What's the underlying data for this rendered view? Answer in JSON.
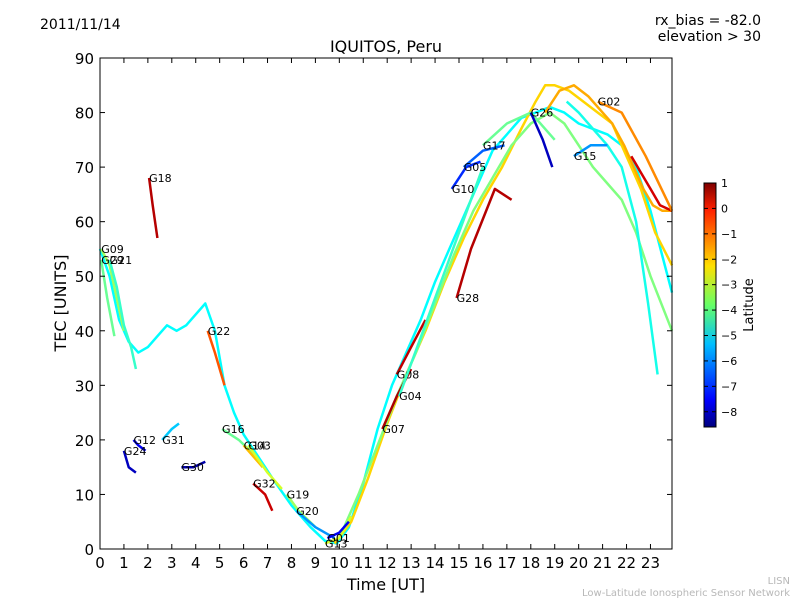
{
  "header": {
    "date": "2011/11/14",
    "rx_bias": "rx_bias = -82.0",
    "elevation": "elevation > 30"
  },
  "footer": {
    "line1": "LISN",
    "line2": "Low-Latitude Ionospheric Sensor Network"
  },
  "chart_data": {
    "type": "scatter",
    "title": "IQUITOS, Peru",
    "xlabel": "Time [UT]",
    "ylabel": "TEC [UNITS]",
    "xlim": [
      0,
      23.9
    ],
    "ylim": [
      0,
      90
    ],
    "xticks": [
      0,
      1,
      2,
      3,
      4,
      5,
      6,
      7,
      8,
      9,
      10,
      11,
      12,
      13,
      14,
      15,
      16,
      17,
      18,
      19,
      20,
      21,
      22,
      23
    ],
    "yticks": [
      0,
      10,
      20,
      30,
      40,
      50,
      60,
      70,
      80,
      90
    ],
    "grid": false,
    "colorbar": {
      "label": "Latitude",
      "range": [
        -8.6,
        1.0
      ],
      "ticks": [
        1,
        0,
        -1,
        -2,
        -3,
        -4,
        -5,
        -6,
        -7,
        -8
      ],
      "colormap": "jet"
    },
    "series": [
      {
        "name": "G18",
        "color_value": 0.5,
        "x": [
          2.05,
          2.2,
          2.4
        ],
        "y": [
          68,
          63,
          57
        ]
      },
      {
        "name": "G09",
        "color_value": -3.5,
        "x": [
          0.05,
          0.4,
          0.8,
          1.0
        ],
        "y": [
          55,
          52,
          44,
          40
        ]
      },
      {
        "name": "G21",
        "color_value": -4.5,
        "x": [
          0.4,
          0.7,
          1.0,
          1.3,
          1.5
        ],
        "y": [
          53,
          48,
          41,
          37,
          33
        ]
      },
      {
        "name": "G29",
        "color_value": -4.0,
        "x": [
          0.05,
          0.3,
          0.6
        ],
        "y": [
          53,
          46,
          39
        ]
      },
      {
        "name": "G22",
        "color_value": -1.0,
        "x": [
          4.5,
          4.8,
          5.2
        ],
        "y": [
          40,
          36,
          30
        ]
      },
      {
        "name": "G12",
        "color_value": -7.5,
        "x": [
          1.4,
          1.6,
          1.9
        ],
        "y": [
          20,
          19,
          18
        ]
      },
      {
        "name": "G24",
        "color_value": -8.0,
        "x": [
          1.0,
          1.2,
          1.5
        ],
        "y": [
          18,
          15,
          14
        ]
      },
      {
        "name": "G31",
        "color_value": -5.5,
        "x": [
          2.6,
          3.0,
          3.3
        ],
        "y": [
          20,
          22,
          23
        ]
      },
      {
        "name": "G30",
        "color_value": -8.2,
        "x": [
          3.4,
          3.9,
          4.4
        ],
        "y": [
          15,
          15,
          16
        ]
      },
      {
        "name": "G16",
        "color_value": -4.0,
        "x": [
          5.1,
          5.8,
          6.5
        ],
        "y": [
          22,
          20,
          17
        ]
      },
      {
        "name": "G14",
        "color_value": -2.0,
        "x": [
          6.0,
          6.4,
          6.8
        ],
        "y": [
          19,
          17,
          15
        ]
      },
      {
        "name": "G03",
        "color_value": -3.0,
        "x": [
          6.2,
          7.0,
          7.6
        ],
        "y": [
          19,
          14,
          11
        ]
      },
      {
        "name": "G32",
        "color_value": 0.3,
        "x": [
          6.4,
          6.9,
          7.2
        ],
        "y": [
          12,
          10,
          7
        ]
      },
      {
        "name": "G19",
        "color_value": -3.5,
        "x": [
          7.8,
          8.3,
          9.0
        ],
        "y": [
          10,
          7,
          4
        ]
      },
      {
        "name": "G20",
        "color_value": -6.0,
        "x": [
          8.2,
          9.0,
          9.8
        ],
        "y": [
          7,
          4,
          2
        ]
      },
      {
        "name": "G13",
        "color_value": -3.0,
        "x": [
          9.4,
          10.0,
          10.5
        ],
        "y": [
          1,
          2,
          6
        ]
      },
      {
        "name": "G01",
        "color_value": -7.5,
        "x": [
          9.5,
          10.0,
          10.4
        ],
        "y": [
          2,
          3,
          5
        ]
      },
      {
        "name": "G07",
        "color_value": 0.6,
        "x": [
          11.8,
          12.4,
          13.0
        ],
        "y": [
          22,
          28,
          33
        ]
      },
      {
        "name": "G08",
        "color_value": 0.4,
        "x": [
          12.4,
          13.0,
          13.6
        ],
        "y": [
          32,
          37,
          42
        ]
      },
      {
        "name": "G04",
        "color_value": -4.5,
        "x": [
          12.5,
          14.0,
          15.0,
          16.0
        ],
        "y": [
          28,
          46,
          58,
          70
        ]
      },
      {
        "name": "G28",
        "color_value": 0.5,
        "x": [
          14.9,
          15.5,
          16.5,
          17.2
        ],
        "y": [
          46,
          55,
          66,
          64
        ]
      },
      {
        "name": "G10",
        "color_value": -7.0,
        "x": [
          14.7,
          15.3,
          15.9
        ],
        "y": [
          66,
          70,
          71
        ]
      },
      {
        "name": "G05",
        "color_value": -6.5,
        "x": [
          15.2,
          16.0,
          16.9
        ],
        "y": [
          70,
          73,
          74
        ]
      },
      {
        "name": "G17",
        "color_value": -4.0,
        "x": [
          16.0,
          17.0,
          18.0,
          19.0
        ],
        "y": [
          74,
          78,
          80,
          75
        ]
      },
      {
        "name": "G26",
        "color_value": -8.0,
        "x": [
          18.0,
          18.5,
          18.9
        ],
        "y": [
          80,
          75,
          70
        ]
      },
      {
        "name": "G15",
        "color_value": -6.0,
        "x": [
          19.8,
          20.5,
          21.2
        ],
        "y": [
          72,
          74,
          74
        ]
      },
      {
        "name": "G02",
        "color_value": -1.5,
        "x": [
          20.8,
          21.8,
          22.8,
          23.9
        ],
        "y": [
          82,
          80,
          72,
          62
        ]
      }
    ],
    "curves": [
      {
        "color_value": -5.0,
        "x": [
          0.0,
          0.4,
          0.8,
          1.2,
          1.6,
          2.0,
          2.4,
          2.8,
          3.2,
          3.6,
          4.0,
          4.4,
          4.8,
          5.2,
          5.6,
          6.0,
          6.6,
          7.2,
          8.0,
          8.8,
          9.4,
          9.9,
          10.4,
          11.0,
          11.6,
          12.2,
          12.8,
          13.4,
          14.0,
          14.6,
          15.2,
          15.8,
          16.4,
          17.0,
          17.6,
          18.2,
          18.8,
          19.4,
          20.0,
          20.6,
          21.2,
          21.8,
          22.4,
          23.0,
          23.6,
          23.9
        ],
        "y": [
          55,
          50,
          42,
          38,
          36,
          37,
          39,
          41,
          40,
          41,
          43,
          45,
          40,
          30,
          25,
          21,
          17,
          13,
          8,
          4,
          1.5,
          1,
          4,
          12,
          22,
          30,
          36,
          42,
          49,
          55,
          61,
          67,
          73,
          76,
          79,
          80,
          81,
          80,
          78,
          77,
          76,
          74,
          70,
          62,
          52,
          47
        ]
      },
      {
        "color_value": -2.2,
        "x": [
          9.8,
          10.5,
          11.2,
          12.0,
          12.8,
          13.6,
          14.4,
          15.2,
          16.0,
          16.8,
          17.6,
          18.2,
          18.6,
          19.0,
          19.6,
          20.2,
          20.8,
          21.4,
          22.0,
          22.6,
          23.2,
          23.9
        ],
        "y": [
          1,
          5,
          13,
          23,
          32,
          40,
          49,
          57,
          64,
          70,
          77,
          82,
          85,
          85,
          84,
          82,
          80,
          78,
          72,
          66,
          58,
          52
        ]
      },
      {
        "color_value": -3.8,
        "x": [
          10.0,
          10.8,
          11.6,
          12.4,
          13.2,
          14.0,
          14.8,
          15.6,
          16.4,
          17.2,
          18.0,
          18.8,
          19.4,
          20.0,
          20.6,
          21.2,
          21.8,
          22.4,
          23.0,
          23.9
        ],
        "y": [
          2,
          10,
          19,
          28,
          36,
          45,
          54,
          62,
          68,
          74,
          78,
          80,
          78,
          74,
          70,
          67,
          64,
          58,
          50,
          40
        ]
      },
      {
        "color_value": -1.8,
        "x": [
          18.6,
          19.2,
          19.8,
          20.4,
          21.0,
          21.4,
          21.9,
          22.3,
          22.7,
          23.1,
          23.5,
          23.9
        ],
        "y": [
          80,
          84,
          85,
          83,
          80,
          78,
          74,
          70,
          66,
          63,
          62,
          62
        ]
      },
      {
        "color_value": 0.2,
        "x": [
          22.2,
          22.6,
          23.0,
          23.4,
          23.9
        ],
        "y": [
          72,
          69,
          66,
          63,
          62
        ]
      },
      {
        "color_value": -4.8,
        "x": [
          19.5,
          20.0,
          20.6,
          21.2,
          21.8,
          22.4,
          22.9,
          23.3
        ],
        "y": [
          82,
          80,
          77,
          74,
          70,
          60,
          45,
          32
        ]
      }
    ]
  }
}
